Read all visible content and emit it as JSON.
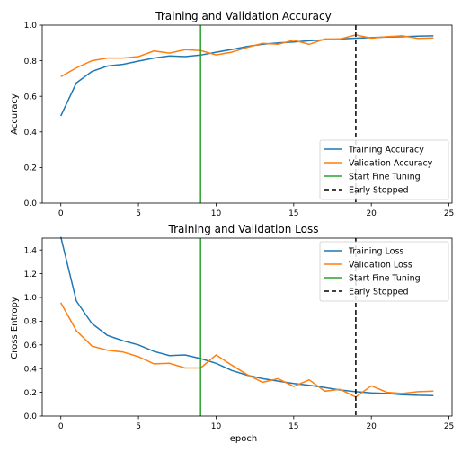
{
  "chart_data": [
    {
      "type": "line",
      "title": "Training and Validation Accuracy",
      "xlabel": "",
      "ylabel": "Accuracy",
      "xlim": [
        -1.2,
        25.2
      ],
      "ylim": [
        0,
        1.0
      ],
      "xticks": [
        0,
        5,
        10,
        15,
        20,
        25
      ],
      "yticks": [
        0.0,
        0.2,
        0.4,
        0.6,
        0.8,
        1.0
      ],
      "ytick_labels": [
        "0.0",
        "0.2",
        "0.4",
        "0.6",
        "0.8",
        "1.0"
      ],
      "grid": false,
      "legend_position": "lower-right",
      "x": [
        0,
        1,
        2,
        3,
        4,
        5,
        6,
        7,
        8,
        9,
        10,
        11,
        12,
        13,
        14,
        15,
        16,
        17,
        18,
        19,
        20,
        21,
        22,
        23,
        24
      ],
      "series": [
        {
          "name": "Training Accuracy",
          "color": "#1f77b4",
          "style": "solid",
          "values": [
            0.49,
            0.675,
            0.74,
            0.77,
            0.78,
            0.798,
            0.815,
            0.827,
            0.823,
            0.832,
            0.848,
            0.863,
            0.88,
            0.893,
            0.9,
            0.905,
            0.912,
            0.918,
            0.922,
            0.927,
            0.93,
            0.933,
            0.935,
            0.938,
            0.94
          ]
        },
        {
          "name": "Validation Accuracy",
          "color": "#ff7f0e",
          "style": "solid",
          "values": [
            0.71,
            0.76,
            0.8,
            0.815,
            0.815,
            0.823,
            0.855,
            0.843,
            0.862,
            0.857,
            0.833,
            0.848,
            0.875,
            0.898,
            0.893,
            0.915,
            0.892,
            0.922,
            0.922,
            0.945,
            0.927,
            0.935,
            0.94,
            0.925,
            0.928
          ]
        }
      ],
      "vlines": [
        {
          "name": "Start Fine Tuning",
          "x": 9,
          "color": "#2ca02c",
          "style": "solid"
        },
        {
          "name": "Early Stopped",
          "x": 19,
          "color": "#000000",
          "style": "dashed"
        }
      ]
    },
    {
      "type": "line",
      "title": "Training and Validation Loss",
      "xlabel": "epoch",
      "ylabel": "Cross Entropy",
      "xlim": [
        -1.2,
        25.2
      ],
      "ylim": [
        0,
        1.5
      ],
      "xticks": [
        0,
        5,
        10,
        15,
        20,
        25
      ],
      "yticks": [
        0.0,
        0.2,
        0.4,
        0.6,
        0.8,
        1.0,
        1.2,
        1.4
      ],
      "ytick_labels": [
        "0.0",
        "0.2",
        "0.4",
        "0.6",
        "0.8",
        "1.0",
        "1.2",
        "1.4"
      ],
      "grid": false,
      "legend_position": "upper-right",
      "x": [
        0,
        1,
        2,
        3,
        4,
        5,
        6,
        7,
        8,
        9,
        10,
        11,
        12,
        13,
        14,
        15,
        16,
        17,
        18,
        19,
        20,
        21,
        22,
        23,
        24
      ],
      "series": [
        {
          "name": "Training Loss",
          "color": "#1f77b4",
          "style": "solid",
          "values": [
            1.51,
            0.97,
            0.78,
            0.68,
            0.635,
            0.6,
            0.545,
            0.51,
            0.515,
            0.485,
            0.445,
            0.385,
            0.345,
            0.315,
            0.295,
            0.275,
            0.26,
            0.24,
            0.22,
            0.205,
            0.195,
            0.19,
            0.18,
            0.175,
            0.173
          ]
        },
        {
          "name": "Validation Loss",
          "color": "#ff7f0e",
          "style": "solid",
          "values": [
            0.955,
            0.72,
            0.59,
            0.555,
            0.54,
            0.5,
            0.44,
            0.445,
            0.405,
            0.405,
            0.515,
            0.43,
            0.35,
            0.285,
            0.315,
            0.25,
            0.305,
            0.21,
            0.225,
            0.16,
            0.255,
            0.2,
            0.19,
            0.205,
            0.21
          ]
        }
      ],
      "vlines": [
        {
          "name": "Start Fine Tuning",
          "x": 9,
          "color": "#2ca02c",
          "style": "solid"
        },
        {
          "name": "Early Stopped",
          "x": 19,
          "color": "#000000",
          "style": "dashed"
        }
      ]
    }
  ]
}
